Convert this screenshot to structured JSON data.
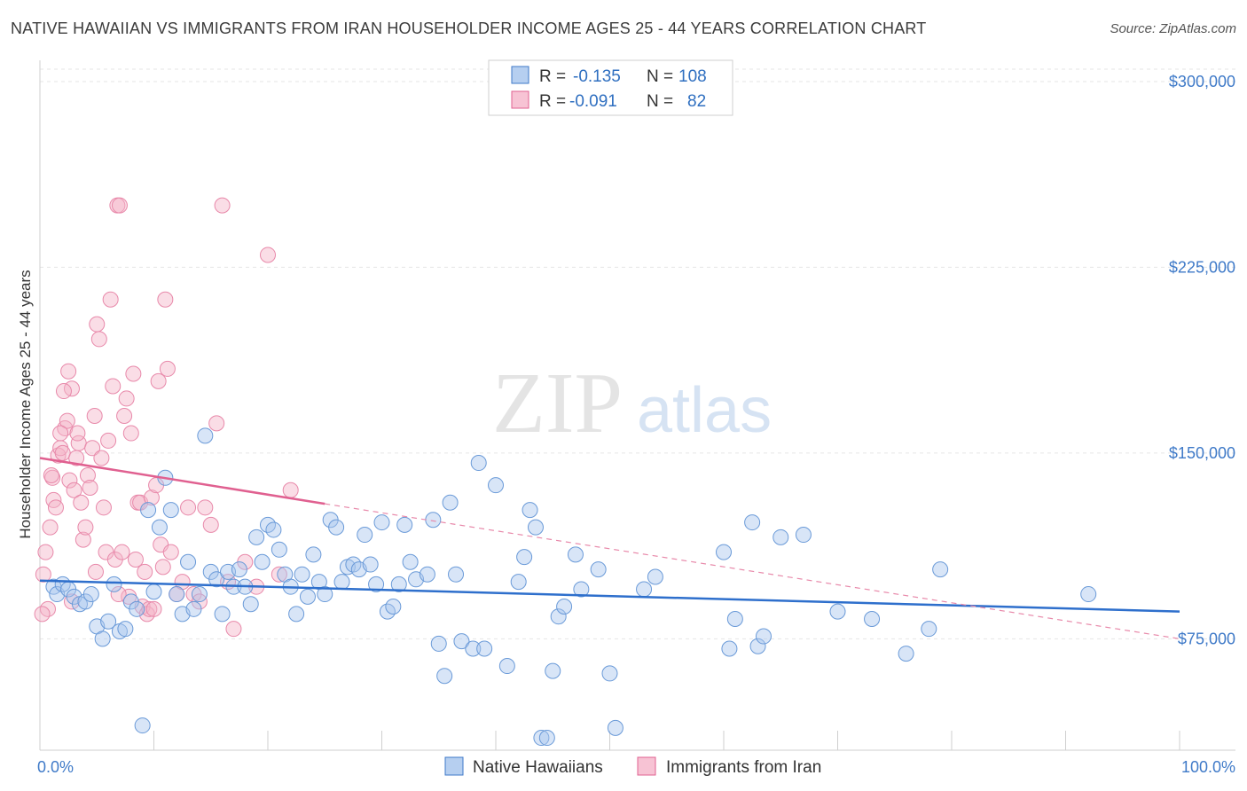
{
  "title": "NATIVE HAWAIIAN VS IMMIGRANTS FROM IRAN HOUSEHOLDER INCOME AGES 25 - 44 YEARS CORRELATION CHART",
  "source": "Source: ZipAtlas.com",
  "watermark": {
    "zip": "ZIP",
    "atlas": "atlas"
  },
  "colors": {
    "blue": "#3f7ac8",
    "blue_fill": "#a9c6ee",
    "pink": "#e06090",
    "pink_fill": "#f4b3c8"
  },
  "legend": {
    "rows": [
      {
        "r_label": "R =",
        "r_value": "-0.135",
        "n_label": "N =",
        "n_value": "108"
      },
      {
        "r_label": "R =",
        "r_value": "-0.091",
        "n_label": "N =",
        "n_value": "82"
      }
    ]
  },
  "chart_data": {
    "type": "scatter",
    "ylabel": "Householder Income Ages 25 - 44 years",
    "xlim": [
      0,
      100
    ],
    "ylim": [
      30000,
      305000
    ],
    "y_ticks": [
      75000,
      150000,
      225000,
      300000
    ],
    "y_tick_labels": [
      "$75,000",
      "$150,000",
      "$225,000",
      "$300,000"
    ],
    "x_tick_labels": [
      "0.0%",
      "100.0%"
    ],
    "grid": true,
    "legend_position": "top-center",
    "series": [
      {
        "name": "Native Hawaiians",
        "color": "#3f7ac8",
        "trend": {
          "x": [
            0,
            100
          ],
          "y": [
            98500,
            86000
          ]
        },
        "points": [
          [
            1.2,
            96000
          ],
          [
            1.5,
            93000
          ],
          [
            2,
            97000
          ],
          [
            2.5,
            95000
          ],
          [
            3,
            92000
          ],
          [
            3.5,
            89000
          ],
          [
            4,
            90000
          ],
          [
            4.5,
            93000
          ],
          [
            5,
            80000
          ],
          [
            5.5,
            75000
          ],
          [
            6,
            82000
          ],
          [
            6.5,
            97000
          ],
          [
            7,
            78000
          ],
          [
            7.5,
            79000
          ],
          [
            8,
            90000
          ],
          [
            8.5,
            87000
          ],
          [
            9,
            40000
          ],
          [
            9.5,
            127000
          ],
          [
            10,
            94000
          ],
          [
            10.5,
            120000
          ],
          [
            11,
            140000
          ],
          [
            11.5,
            127000
          ],
          [
            12,
            93000
          ],
          [
            12.5,
            85000
          ],
          [
            13,
            106000
          ],
          [
            13.5,
            87000
          ],
          [
            14,
            93000
          ],
          [
            14.5,
            157000
          ],
          [
            15,
            102000
          ],
          [
            15.5,
            99000
          ],
          [
            16,
            85000
          ],
          [
            16.5,
            102000
          ],
          [
            17,
            96000
          ],
          [
            17.5,
            103000
          ],
          [
            18,
            96000
          ],
          [
            18.5,
            89000
          ],
          [
            19,
            116000
          ],
          [
            19.5,
            106000
          ],
          [
            20,
            121000
          ],
          [
            20.5,
            119000
          ],
          [
            21,
            111000
          ],
          [
            21.5,
            101000
          ],
          [
            22,
            96000
          ],
          [
            22.5,
            85000
          ],
          [
            23,
            101000
          ],
          [
            23.5,
            92000
          ],
          [
            24,
            109000
          ],
          [
            24.5,
            98000
          ],
          [
            25,
            93000
          ],
          [
            25.5,
            123000
          ],
          [
            26,
            120000
          ],
          [
            26.5,
            98000
          ],
          [
            27,
            104000
          ],
          [
            27.5,
            105000
          ],
          [
            28,
            103000
          ],
          [
            28.5,
            117000
          ],
          [
            29,
            105000
          ],
          [
            29.5,
            97000
          ],
          [
            30,
            122000
          ],
          [
            30.5,
            86000
          ],
          [
            31,
            88000
          ],
          [
            31.5,
            97000
          ],
          [
            32,
            121000
          ],
          [
            32.5,
            106000
          ],
          [
            33,
            99000
          ],
          [
            34,
            101000
          ],
          [
            34.5,
            123000
          ],
          [
            35,
            73000
          ],
          [
            35.5,
            60000
          ],
          [
            36,
            130000
          ],
          [
            36.5,
            101000
          ],
          [
            37,
            74000
          ],
          [
            38,
            71000
          ],
          [
            38.5,
            146000
          ],
          [
            39,
            71000
          ],
          [
            40,
            137000
          ],
          [
            41,
            64000
          ],
          [
            42,
            98000
          ],
          [
            42.5,
            108000
          ],
          [
            43,
            127000
          ],
          [
            43.5,
            120000
          ],
          [
            44,
            35000
          ],
          [
            44.5,
            35000
          ],
          [
            45,
            62000
          ],
          [
            45.5,
            84000
          ],
          [
            46,
            88000
          ],
          [
            47,
            109000
          ],
          [
            47.5,
            95000
          ],
          [
            49,
            103000
          ],
          [
            50,
            61000
          ],
          [
            50.5,
            39000
          ],
          [
            53,
            95000
          ],
          [
            54,
            100000
          ],
          [
            60,
            110000
          ],
          [
            60.5,
            71000
          ],
          [
            61,
            83000
          ],
          [
            63,
            72000
          ],
          [
            63.5,
            76000
          ],
          [
            62.5,
            122000
          ],
          [
            65,
            116000
          ],
          [
            67,
            117000
          ],
          [
            70,
            86000
          ],
          [
            73,
            83000
          ],
          [
            76,
            69000
          ],
          [
            78,
            79000
          ],
          [
            79,
            103000
          ],
          [
            92,
            93000
          ]
        ]
      },
      {
        "name": "Immigrants from Iran",
        "color": "#e06090",
        "trend": {
          "x": [
            0,
            25
          ],
          "y": [
            148000,
            129500
          ]
        },
        "trend_dashed": {
          "x": [
            25,
            100
          ],
          "y": [
            129500,
            75000
          ]
        },
        "points": [
          [
            0.3,
            101000
          ],
          [
            0.5,
            110000
          ],
          [
            0.7,
            87000
          ],
          [
            0.9,
            120000
          ],
          [
            1.1,
            140000
          ],
          [
            1.2,
            131000
          ],
          [
            1.4,
            128000
          ],
          [
            1.6,
            149000
          ],
          [
            1.8,
            152000
          ],
          [
            2,
            150000
          ],
          [
            2.2,
            160000
          ],
          [
            2.4,
            163000
          ],
          [
            2.5,
            183000
          ],
          [
            2.6,
            139000
          ],
          [
            2.8,
            176000
          ],
          [
            3,
            135000
          ],
          [
            3.2,
            148000
          ],
          [
            3.4,
            154000
          ],
          [
            3.6,
            130000
          ],
          [
            3.8,
            115000
          ],
          [
            4,
            120000
          ],
          [
            4.2,
            141000
          ],
          [
            4.4,
            136000
          ],
          [
            4.6,
            152000
          ],
          [
            4.8,
            165000
          ],
          [
            5,
            202000
          ],
          [
            5.2,
            196000
          ],
          [
            5.4,
            148000
          ],
          [
            5.6,
            128000
          ],
          [
            5.8,
            110000
          ],
          [
            6,
            155000
          ],
          [
            6.2,
            212000
          ],
          [
            6.4,
            177000
          ],
          [
            6.6,
            107000
          ],
          [
            6.8,
            250000
          ],
          [
            7,
            250000
          ],
          [
            7.2,
            110000
          ],
          [
            7.4,
            165000
          ],
          [
            7.6,
            172000
          ],
          [
            7.8,
            92000
          ],
          [
            8,
            158000
          ],
          [
            8.2,
            182000
          ],
          [
            8.4,
            107000
          ],
          [
            8.6,
            130000
          ],
          [
            8.8,
            130000
          ],
          [
            9,
            88000
          ],
          [
            9.2,
            102000
          ],
          [
            9.4,
            85000
          ],
          [
            9.6,
            87000
          ],
          [
            9.8,
            132000
          ],
          [
            10,
            87000
          ],
          [
            10.2,
            137000
          ],
          [
            10.4,
            179000
          ],
          [
            10.6,
            113000
          ],
          [
            10.8,
            104000
          ],
          [
            11,
            212000
          ],
          [
            11.2,
            184000
          ],
          [
            11.5,
            110000
          ],
          [
            12,
            93000
          ],
          [
            12.5,
            98000
          ],
          [
            13,
            128000
          ],
          [
            13.5,
            93000
          ],
          [
            14,
            90000
          ],
          [
            14.5,
            128000
          ],
          [
            15,
            121000
          ],
          [
            15.5,
            162000
          ],
          [
            16,
            250000
          ],
          [
            16.5,
            98000
          ],
          [
            17,
            79000
          ],
          [
            18,
            106000
          ],
          [
            19,
            96000
          ],
          [
            20,
            230000
          ],
          [
            21,
            101000
          ],
          [
            22,
            135000
          ],
          [
            2.8,
            90000
          ],
          [
            3.3,
            158000
          ],
          [
            4.9,
            102000
          ],
          [
            6.9,
            93000
          ],
          [
            1.8,
            158000
          ],
          [
            2.1,
            175000
          ],
          [
            1,
            141000
          ],
          [
            0.2,
            85000
          ]
        ]
      }
    ]
  },
  "bottom_legend": [
    "Native Hawaiians",
    "Immigrants from Iran"
  ]
}
